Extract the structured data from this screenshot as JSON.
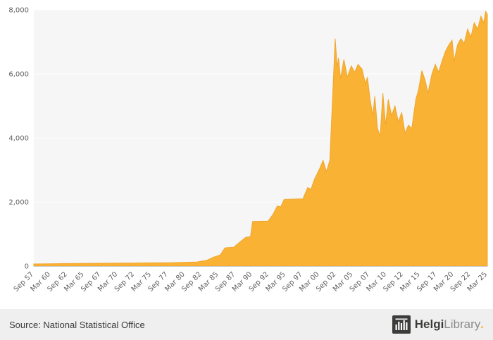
{
  "chart_data": {
    "type": "area",
    "title": "",
    "xlabel": "",
    "ylabel": "",
    "grid": true,
    "legend": false,
    "series_color": "#f9b234",
    "series_edge_color": "#f0a62e",
    "plot_bg": "#f6f6f6",
    "gridline_color": "#ffffff",
    "axis_line_color": "#cccccc",
    "xlim": [
      1957.75,
      2025.25
    ],
    "ylim": [
      0,
      8000
    ],
    "x": [
      1957.75,
      1960,
      1963,
      1966,
      1969,
      1972,
      1975,
      1978,
      1980,
      1982,
      1983.5,
      1984.5,
      1985.5,
      1986.2,
      1987.5,
      1988.3,
      1989.3,
      1990,
      1990.3,
      1992.6,
      1993.3,
      1994,
      1994.5,
      1995,
      1997.8,
      1998.5,
      1999,
      1999.5,
      2000.3,
      2000.8,
      2001.3,
      2001.8,
      2002.6,
      2002.9,
      2003.1,
      2003.4,
      2003.9,
      2004.4,
      2005,
      2005.5,
      2006,
      2006.6,
      2007.1,
      2007.4,
      2007.8,
      2008.2,
      2008.5,
      2008.9,
      2009.3,
      2009.7,
      2010.1,
      2010.5,
      2011,
      2011.5,
      2012,
      2012.5,
      2013,
      2013.5,
      2014,
      2014.6,
      2015,
      2015.5,
      2016,
      2016.4,
      2017,
      2017.5,
      2018,
      2018.5,
      2019,
      2019.5,
      2020,
      2020.3,
      2020.8,
      2021.3,
      2021.8,
      2022.3,
      2022.8,
      2023.3,
      2023.8,
      2024.3,
      2024.7,
      2025,
      2025.25
    ],
    "values": [
      65,
      70,
      80,
      85,
      90,
      95,
      100,
      105,
      115,
      125,
      180,
      280,
      350,
      570,
      590,
      730,
      900,
      920,
      1390,
      1400,
      1600,
      1880,
      1850,
      2080,
      2100,
      2450,
      2400,
      2700,
      3050,
      3300,
      2950,
      3300,
      7100,
      6200,
      6500,
      5850,
      6450,
      5900,
      6250,
      6050,
      6300,
      6150,
      5700,
      5900,
      5200,
      4700,
      5300,
      4300,
      4050,
      5400,
      4400,
      5200,
      4700,
      5000,
      4500,
      4800,
      4150,
      4400,
      4300,
      5200,
      5500,
      6100,
      5800,
      5400,
      6000,
      6300,
      6050,
      6400,
      6700,
      6900,
      7050,
      6400,
      6900,
      7100,
      6950,
      7400,
      7150,
      7600,
      7400,
      7800,
      7600,
      7950,
      7860
    ],
    "x_tick_labels": [
      "Sep 57",
      "Mar 60",
      "Sep 62",
      "Mar 65",
      "Sep 67",
      "Mar 70",
      "Sep 72",
      "Mar 75",
      "Sep 77",
      "Mar 80",
      "Sep 82",
      "Mar 85",
      "Sep 87",
      "Mar 90",
      "Sep 92",
      "Mar 95",
      "Sep 97",
      "Mar 00",
      "Sep 02",
      "Mar 05",
      "Sep 07",
      "Mar 10",
      "Sep 12",
      "Mar 15",
      "Sep 17",
      "Mar 20",
      "Sep 22",
      "Mar 25"
    ],
    "x_tick_positions": [
      1957.75,
      1960.25,
      1962.75,
      1965.25,
      1967.75,
      1970.25,
      1972.75,
      1975.25,
      1977.75,
      1980.25,
      1982.75,
      1985.25,
      1987.75,
      1990.25,
      1992.75,
      1995.25,
      1997.75,
      2000.25,
      2002.75,
      2005.25,
      2007.75,
      2010.25,
      2012.75,
      2015.25,
      2017.75,
      2020.25,
      2022.75,
      2025.25
    ],
    "y_tick_labels": [
      "0",
      "2,000",
      "4,000",
      "6,000",
      "8,000"
    ],
    "y_tick_values": [
      0,
      2000,
      4000,
      6000,
      8000
    ]
  },
  "footer": {
    "source": "Source: National Statistical Office"
  },
  "logo": {
    "name_bold": "Helgi",
    "name_light": "Library",
    "dot": "."
  }
}
